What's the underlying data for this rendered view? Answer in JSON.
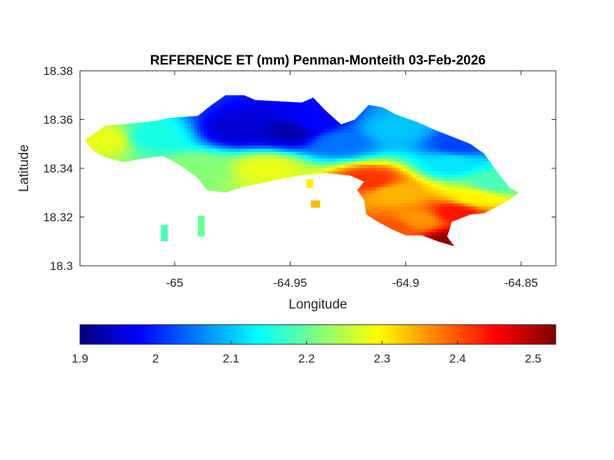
{
  "chart_data": {
    "type": "heatmap",
    "title": "REFERENCE ET (mm) Penman-Monteith 03-Feb-2026",
    "xlabel": "Longitude",
    "ylabel": "Latitude",
    "xlim": [
      -65.041,
      -64.835
    ],
    "ylim": [
      18.3,
      18.38
    ],
    "x_ticks": [
      {
        "value": -65.0,
        "label": "-65"
      },
      {
        "value": -64.95,
        "label": "-64.95"
      },
      {
        "value": -64.9,
        "label": "-64.9"
      },
      {
        "value": -64.85,
        "label": "-64.85"
      }
    ],
    "y_ticks": [
      {
        "value": 18.3,
        "label": "18.3"
      },
      {
        "value": 18.32,
        "label": "18.32"
      },
      {
        "value": 18.34,
        "label": "18.34"
      },
      {
        "value": 18.36,
        "label": "18.36"
      },
      {
        "value": 18.38,
        "label": "18.38"
      }
    ],
    "colormap": "jet",
    "colorbar": {
      "placement": "bottom",
      "range": [
        1.9,
        2.53
      ],
      "ticks": [
        {
          "value": 1.9,
          "label": "1.9"
        },
        {
          "value": 2.0,
          "label": "2"
        },
        {
          "value": 2.1,
          "label": "2.1"
        },
        {
          "value": 2.2,
          "label": "2.2"
        },
        {
          "value": 2.3,
          "label": "2.3"
        },
        {
          "value": 2.4,
          "label": "2.4"
        },
        {
          "value": 2.5,
          "label": "2.5"
        }
      ]
    },
    "grid": false,
    "island_outline": [
      [
        -65.039,
        18.3515
      ],
      [
        -65.03,
        18.3575
      ],
      [
        -65.018,
        18.3585
      ],
      [
        -65.008,
        18.3595
      ],
      [
        -65.003,
        18.3605
      ],
      [
        -64.998,
        18.361
      ],
      [
        -64.99,
        18.3615
      ],
      [
        -64.984,
        18.366
      ],
      [
        -64.978,
        18.37
      ],
      [
        -64.97,
        18.37
      ],
      [
        -64.965,
        18.368
      ],
      [
        -64.955,
        18.3675
      ],
      [
        -64.945,
        18.367
      ],
      [
        -64.94,
        18.369
      ],
      [
        -64.935,
        18.364
      ],
      [
        -64.928,
        18.358
      ],
      [
        -64.922,
        18.36
      ],
      [
        -64.916,
        18.366
      ],
      [
        -64.91,
        18.365
      ],
      [
        -64.904,
        18.362
      ],
      [
        -64.895,
        18.359
      ],
      [
        -64.888,
        18.356
      ],
      [
        -64.88,
        18.353
      ],
      [
        -64.872,
        18.35
      ],
      [
        -64.866,
        18.346
      ],
      [
        -64.86,
        18.338
      ],
      [
        -64.855,
        18.332
      ],
      [
        -64.851,
        18.33
      ],
      [
        -64.855,
        18.327
      ],
      [
        -64.86,
        18.3245
      ],
      [
        -64.866,
        18.3215
      ],
      [
        -64.872,
        18.321
      ],
      [
        -64.876,
        18.3195
      ],
      [
        -64.88,
        18.318
      ],
      [
        -64.882,
        18.312
      ],
      [
        -64.879,
        18.308
      ],
      [
        -64.886,
        18.31
      ],
      [
        -64.893,
        18.3125
      ],
      [
        -64.9,
        18.3125
      ],
      [
        -64.906,
        18.315
      ],
      [
        -64.912,
        18.318
      ],
      [
        -64.917,
        18.321
      ],
      [
        -64.918,
        18.327
      ],
      [
        -64.921,
        18.331
      ],
      [
        -64.918,
        18.3345
      ],
      [
        -64.924,
        18.337
      ],
      [
        -64.935,
        18.338
      ],
      [
        -64.946,
        18.337
      ],
      [
        -64.955,
        18.3355
      ],
      [
        -64.962,
        18.334
      ],
      [
        -64.97,
        18.3325
      ],
      [
        -64.978,
        18.33
      ],
      [
        -64.986,
        18.331
      ],
      [
        -64.99,
        18.336
      ],
      [
        -64.998,
        18.3415
      ],
      [
        -65.005,
        18.345
      ],
      [
        -65.014,
        18.344
      ],
      [
        -65.022,
        18.3425
      ],
      [
        -65.03,
        18.3445
      ],
      [
        -65.035,
        18.347
      ]
    ],
    "islets": [
      [
        [
          -64.99,
          18.3205
        ],
        [
          -64.987,
          18.3205
        ],
        [
          -64.987,
          18.312
        ],
        [
          -64.99,
          18.312
        ]
      ],
      [
        [
          -65.006,
          18.3168
        ],
        [
          -65.003,
          18.3168
        ],
        [
          -65.003,
          18.31
        ],
        [
          -65.006,
          18.31
        ]
      ],
      [
        [
          -64.941,
          18.3268
        ],
        [
          -64.937,
          18.3268
        ],
        [
          -64.937,
          18.3238
        ],
        [
          -64.941,
          18.3238
        ]
      ],
      [
        [
          -64.943,
          18.3355
        ],
        [
          -64.94,
          18.3355
        ],
        [
          -64.94,
          18.332
        ],
        [
          -64.943,
          18.332
        ]
      ]
    ],
    "key_values": [
      {
        "lon": -64.972,
        "lat": 18.356,
        "value": 1.95
      },
      {
        "lon": -64.95,
        "lat": 18.3555,
        "value": 1.93
      },
      {
        "lon": -64.94,
        "lat": 18.359,
        "value": 1.98
      },
      {
        "lon": -64.928,
        "lat": 18.351,
        "value": 2.05
      },
      {
        "lon": -64.877,
        "lat": 18.35,
        "value": 2.02
      },
      {
        "lon": -64.905,
        "lat": 18.356,
        "value": 2.1
      },
      {
        "lon": -64.88,
        "lat": 18.342,
        "value": 2.12
      },
      {
        "lon": -64.862,
        "lat": 18.334,
        "value": 2.18
      },
      {
        "lon": -65.03,
        "lat": 18.352,
        "value": 2.28
      },
      {
        "lon": -65.01,
        "lat": 18.353,
        "value": 2.15
      },
      {
        "lon": -64.99,
        "lat": 18.34,
        "value": 2.22
      },
      {
        "lon": -64.96,
        "lat": 18.34,
        "value": 2.28
      },
      {
        "lon": -64.915,
        "lat": 18.335,
        "value": 2.42
      },
      {
        "lon": -64.905,
        "lat": 18.33,
        "value": 2.34
      },
      {
        "lon": -64.895,
        "lat": 18.319,
        "value": 2.36
      },
      {
        "lon": -64.878,
        "lat": 18.322,
        "value": 2.44
      },
      {
        "lon": -64.88,
        "lat": 18.31,
        "value": 2.52
      },
      {
        "lon": -64.905,
        "lat": 18.316,
        "value": 2.4
      },
      {
        "lon": -64.87,
        "lat": 18.328,
        "value": 2.3
      },
      {
        "lon": -64.988,
        "lat": 18.316,
        "value": 2.2
      },
      {
        "lon": -65.004,
        "lat": 18.313,
        "value": 2.18
      }
    ]
  }
}
